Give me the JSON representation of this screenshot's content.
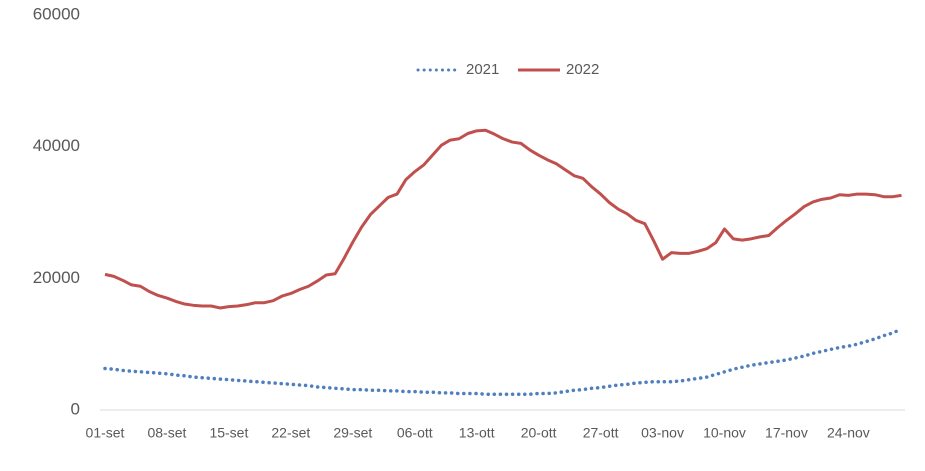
{
  "chart_data": {
    "type": "line",
    "categories": [
      "01-set",
      null,
      null,
      null,
      null,
      null,
      null,
      "08-set",
      null,
      null,
      null,
      null,
      null,
      null,
      "15-set",
      null,
      null,
      null,
      null,
      null,
      null,
      "22-set",
      null,
      null,
      null,
      null,
      null,
      null,
      "29-set",
      null,
      null,
      null,
      null,
      null,
      null,
      "06-ott",
      null,
      null,
      null,
      null,
      null,
      null,
      "13-ott",
      null,
      null,
      null,
      null,
      null,
      null,
      "20-ott",
      null,
      null,
      null,
      null,
      null,
      null,
      "27-ott",
      null,
      null,
      null,
      null,
      null,
      null,
      "03-nov",
      null,
      null,
      null,
      null,
      null,
      null,
      "10-nov",
      null,
      null,
      null,
      null,
      null,
      null,
      "17-nov",
      null,
      null,
      null,
      null,
      null,
      null,
      "24-nov",
      null,
      null,
      null,
      null,
      null,
      null
    ],
    "series": [
      {
        "name": "2021",
        "color": "#4f7fbf",
        "dash": "dotted",
        "values": [
          6300,
          6200,
          6000,
          5900,
          5800,
          5700,
          5600,
          5500,
          5300,
          5200,
          5000,
          4900,
          4800,
          4700,
          4600,
          4500,
          4400,
          4300,
          4200,
          4100,
          4000,
          3900,
          3800,
          3700,
          3500,
          3400,
          3300,
          3200,
          3100,
          3100,
          3000,
          3000,
          2900,
          2900,
          2800,
          2800,
          2700,
          2700,
          2600,
          2600,
          2500,
          2500,
          2500,
          2400,
          2400,
          2400,
          2400,
          2400,
          2400,
          2500,
          2500,
          2600,
          2800,
          3000,
          3100,
          3300,
          3400,
          3600,
          3800,
          3900,
          4100,
          4200,
          4300,
          4300,
          4300,
          4400,
          4600,
          4800,
          5000,
          5400,
          5800,
          6200,
          6500,
          6800,
          7000,
          7200,
          7400,
          7600,
          7900,
          8200,
          8600,
          8900,
          9200,
          9500,
          9700,
          10000,
          10400,
          10800,
          11300,
          11700,
          12300
        ]
      },
      {
        "name": "2022",
        "color": "#c0504d",
        "dash": "solid",
        "values": [
          20600,
          20300,
          19700,
          19000,
          18800,
          18000,
          17400,
          17000,
          16500,
          16100,
          15900,
          15800,
          15800,
          15500,
          15700,
          15800,
          16000,
          16300,
          16300,
          16600,
          17300,
          17700,
          18300,
          18800,
          19600,
          20500,
          20700,
          23000,
          25500,
          27800,
          29700,
          31000,
          32300,
          32800,
          35000,
          36200,
          37200,
          38700,
          40200,
          41000,
          41200,
          42000,
          42400,
          42500,
          41900,
          41200,
          40700,
          40500,
          39500,
          38700,
          38000,
          37400,
          36500,
          35600,
          35200,
          33900,
          32800,
          31500,
          30500,
          29800,
          28800,
          28300,
          25700,
          22900,
          23900,
          23800,
          23800,
          24100,
          24500,
          25400,
          27500,
          26000,
          25800,
          26000,
          26300,
          26500,
          27700,
          28800,
          29800,
          30900,
          31600,
          32000,
          32200,
          32700,
          32600,
          32800,
          32800,
          32700,
          32400,
          32400,
          32600
        ]
      }
    ],
    "ylim": [
      0,
      60000
    ],
    "yticks": [
      0,
      20000,
      40000,
      60000
    ],
    "grid": false,
    "legend": "top"
  }
}
